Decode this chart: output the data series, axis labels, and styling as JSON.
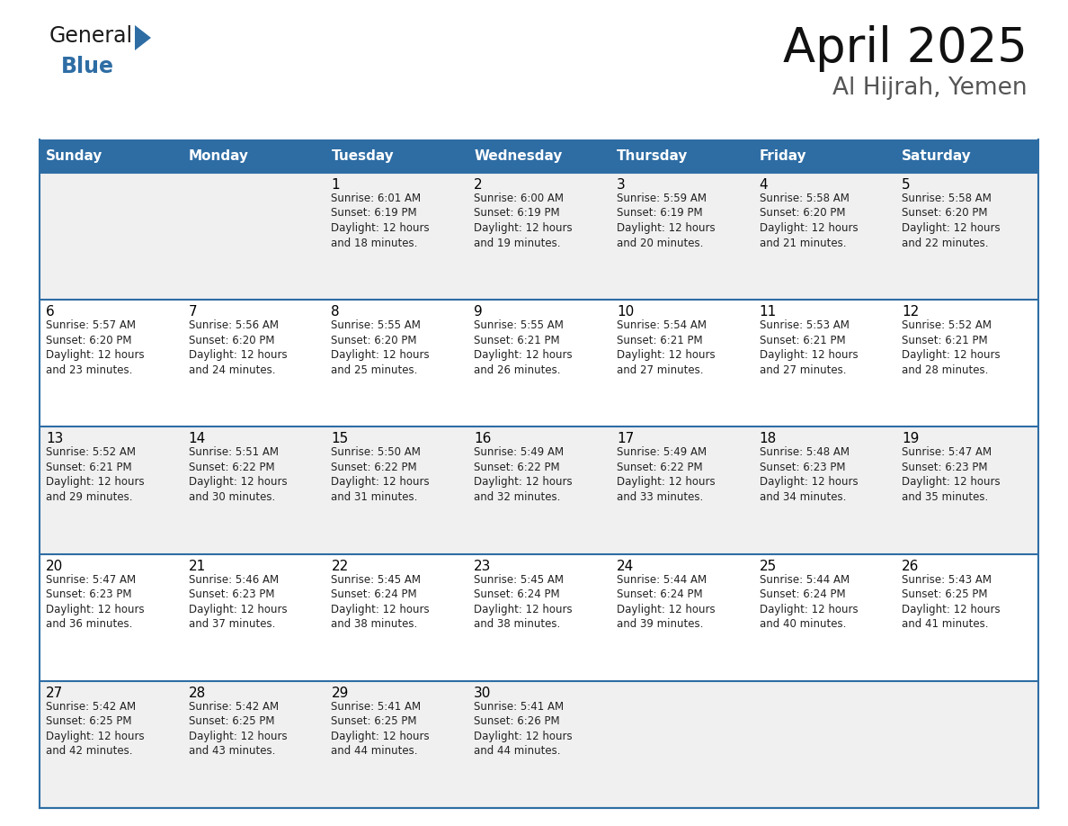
{
  "title": "April 2025",
  "subtitle": "Al Hijrah, Yemen",
  "header_bg": "#2E6DA4",
  "header_text_color": "#FFFFFF",
  "cell_bg_odd": "#F0F0F0",
  "cell_bg_even": "#FFFFFF",
  "cell_line_color": "#2E6DA4",
  "day_names": [
    "Sunday",
    "Monday",
    "Tuesday",
    "Wednesday",
    "Thursday",
    "Friday",
    "Saturday"
  ],
  "calendar_data": [
    [
      {
        "day": "",
        "lines": ""
      },
      {
        "day": "",
        "lines": ""
      },
      {
        "day": "1",
        "lines": "Sunrise: 6:01 AM\nSunset: 6:19 PM\nDaylight: 12 hours\nand 18 minutes."
      },
      {
        "day": "2",
        "lines": "Sunrise: 6:00 AM\nSunset: 6:19 PM\nDaylight: 12 hours\nand 19 minutes."
      },
      {
        "day": "3",
        "lines": "Sunrise: 5:59 AM\nSunset: 6:19 PM\nDaylight: 12 hours\nand 20 minutes."
      },
      {
        "day": "4",
        "lines": "Sunrise: 5:58 AM\nSunset: 6:20 PM\nDaylight: 12 hours\nand 21 minutes."
      },
      {
        "day": "5",
        "lines": "Sunrise: 5:58 AM\nSunset: 6:20 PM\nDaylight: 12 hours\nand 22 minutes."
      }
    ],
    [
      {
        "day": "6",
        "lines": "Sunrise: 5:57 AM\nSunset: 6:20 PM\nDaylight: 12 hours\nand 23 minutes."
      },
      {
        "day": "7",
        "lines": "Sunrise: 5:56 AM\nSunset: 6:20 PM\nDaylight: 12 hours\nand 24 minutes."
      },
      {
        "day": "8",
        "lines": "Sunrise: 5:55 AM\nSunset: 6:20 PM\nDaylight: 12 hours\nand 25 minutes."
      },
      {
        "day": "9",
        "lines": "Sunrise: 5:55 AM\nSunset: 6:21 PM\nDaylight: 12 hours\nand 26 minutes."
      },
      {
        "day": "10",
        "lines": "Sunrise: 5:54 AM\nSunset: 6:21 PM\nDaylight: 12 hours\nand 27 minutes."
      },
      {
        "day": "11",
        "lines": "Sunrise: 5:53 AM\nSunset: 6:21 PM\nDaylight: 12 hours\nand 27 minutes."
      },
      {
        "day": "12",
        "lines": "Sunrise: 5:52 AM\nSunset: 6:21 PM\nDaylight: 12 hours\nand 28 minutes."
      }
    ],
    [
      {
        "day": "13",
        "lines": "Sunrise: 5:52 AM\nSunset: 6:21 PM\nDaylight: 12 hours\nand 29 minutes."
      },
      {
        "day": "14",
        "lines": "Sunrise: 5:51 AM\nSunset: 6:22 PM\nDaylight: 12 hours\nand 30 minutes."
      },
      {
        "day": "15",
        "lines": "Sunrise: 5:50 AM\nSunset: 6:22 PM\nDaylight: 12 hours\nand 31 minutes."
      },
      {
        "day": "16",
        "lines": "Sunrise: 5:49 AM\nSunset: 6:22 PM\nDaylight: 12 hours\nand 32 minutes."
      },
      {
        "day": "17",
        "lines": "Sunrise: 5:49 AM\nSunset: 6:22 PM\nDaylight: 12 hours\nand 33 minutes."
      },
      {
        "day": "18",
        "lines": "Sunrise: 5:48 AM\nSunset: 6:23 PM\nDaylight: 12 hours\nand 34 minutes."
      },
      {
        "day": "19",
        "lines": "Sunrise: 5:47 AM\nSunset: 6:23 PM\nDaylight: 12 hours\nand 35 minutes."
      }
    ],
    [
      {
        "day": "20",
        "lines": "Sunrise: 5:47 AM\nSunset: 6:23 PM\nDaylight: 12 hours\nand 36 minutes."
      },
      {
        "day": "21",
        "lines": "Sunrise: 5:46 AM\nSunset: 6:23 PM\nDaylight: 12 hours\nand 37 minutes."
      },
      {
        "day": "22",
        "lines": "Sunrise: 5:45 AM\nSunset: 6:24 PM\nDaylight: 12 hours\nand 38 minutes."
      },
      {
        "day": "23",
        "lines": "Sunrise: 5:45 AM\nSunset: 6:24 PM\nDaylight: 12 hours\nand 38 minutes."
      },
      {
        "day": "24",
        "lines": "Sunrise: 5:44 AM\nSunset: 6:24 PM\nDaylight: 12 hours\nand 39 minutes."
      },
      {
        "day": "25",
        "lines": "Sunrise: 5:44 AM\nSunset: 6:24 PM\nDaylight: 12 hours\nand 40 minutes."
      },
      {
        "day": "26",
        "lines": "Sunrise: 5:43 AM\nSunset: 6:25 PM\nDaylight: 12 hours\nand 41 minutes."
      }
    ],
    [
      {
        "day": "27",
        "lines": "Sunrise: 5:42 AM\nSunset: 6:25 PM\nDaylight: 12 hours\nand 42 minutes."
      },
      {
        "day": "28",
        "lines": "Sunrise: 5:42 AM\nSunset: 6:25 PM\nDaylight: 12 hours\nand 43 minutes."
      },
      {
        "day": "29",
        "lines": "Sunrise: 5:41 AM\nSunset: 6:25 PM\nDaylight: 12 hours\nand 44 minutes."
      },
      {
        "day": "30",
        "lines": "Sunrise: 5:41 AM\nSunset: 6:26 PM\nDaylight: 12 hours\nand 44 minutes."
      },
      {
        "day": "",
        "lines": ""
      },
      {
        "day": "",
        "lines": ""
      },
      {
        "day": "",
        "lines": ""
      }
    ]
  ],
  "logo_text1": "General",
  "logo_text2": "Blue",
  "logo_triangle_color": "#2E6DA4",
  "title_fontsize": 38,
  "subtitle_fontsize": 19,
  "day_number_fontsize": 11,
  "cell_text_fontsize": 8.5,
  "header_fontsize": 11
}
